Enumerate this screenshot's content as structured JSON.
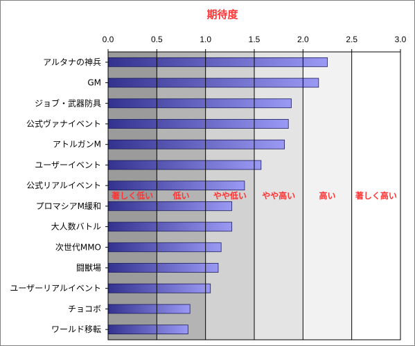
{
  "chart_data": {
    "type": "bar",
    "orientation": "horizontal",
    "title": "期待度",
    "xlim": [
      0,
      3.0
    ],
    "xticks": [
      "0.0",
      "0.5",
      "1.0",
      "1.5",
      "2.0",
      "2.5",
      "3.0"
    ],
    "categories": [
      "アルタナの神兵",
      "GM",
      "ジョブ・武器防具",
      "公式ヴァナイベント",
      "アトルガンM",
      "ユーザーイベント",
      "公式リアルイベント",
      "プロマシアM緩和",
      "大人数バトル",
      "次世代MMO",
      "闘獣場",
      "ユーザーリアルイベント",
      "チョコボ",
      "ワールド移転"
    ],
    "values": [
      2.25,
      2.16,
      1.88,
      1.85,
      1.81,
      1.57,
      1.4,
      1.27,
      1.27,
      1.16,
      1.13,
      1.05,
      0.84,
      0.82
    ],
    "bands": [
      {
        "label": "著しく低い",
        "from": 0.0,
        "to": 0.5,
        "color": "#9b9b9b"
      },
      {
        "label": "低い",
        "from": 0.5,
        "to": 1.0,
        "color": "#b4b4b4"
      },
      {
        "label": "やや低い",
        "from": 1.0,
        "to": 1.5,
        "color": "#d2d2d2"
      },
      {
        "label": "やや高い",
        "from": 1.5,
        "to": 2.0,
        "color": "#e4e4e4"
      },
      {
        "label": "高い",
        "from": 2.0,
        "to": 2.5,
        "color": "#f2f2f2"
      },
      {
        "label": "著しく高い",
        "from": 2.5,
        "to": 3.0,
        "color": "#ffffff"
      }
    ],
    "bar_gradient": [
      "#33338f",
      "#9a9af5"
    ],
    "label_color": "#ff3333",
    "grid": true
  }
}
